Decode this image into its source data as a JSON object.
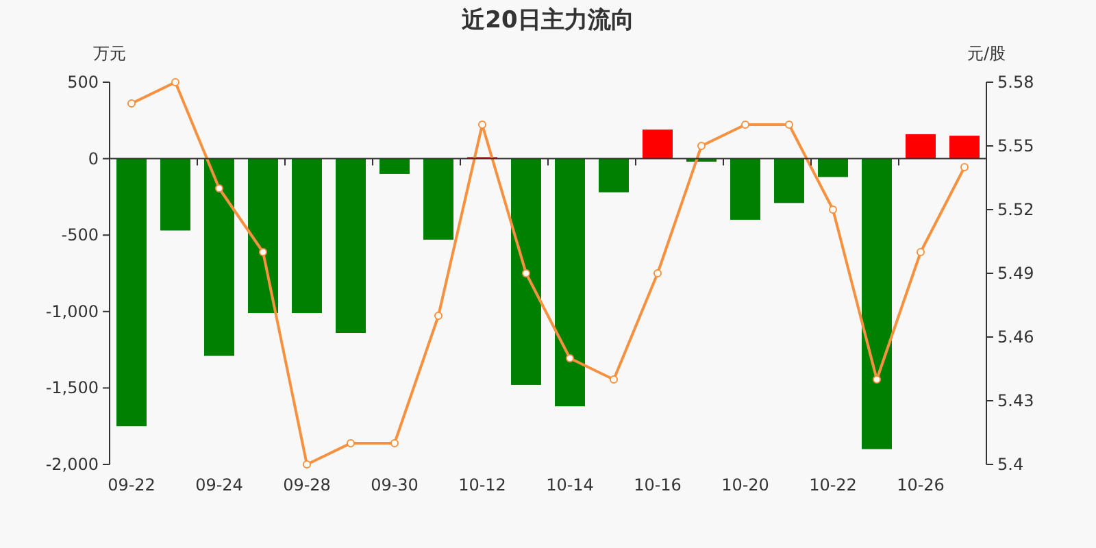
{
  "chart_data": {
    "type": "bar",
    "title": "近20日主力流向",
    "ylabel": "万元",
    "y2label": "元/股",
    "categories": [
      "09-22",
      null,
      "09-24",
      null,
      "09-28",
      null,
      "09-30",
      null,
      "10-12",
      null,
      "10-14",
      null,
      "10-16",
      null,
      "10-20",
      null,
      "10-22",
      null,
      "10-26",
      null
    ],
    "series": [
      {
        "values": [
          -1750,
          -470,
          -1290,
          -1010,
          -1010,
          -1140,
          -100,
          -530,
          10,
          -1480,
          -1620,
          -220,
          190,
          -20,
          -400,
          -290,
          -120,
          -1900,
          160,
          150
        ],
        "colors": [
          "#008000",
          "#008000",
          "#008000",
          "#008000",
          "#008000",
          "#008000",
          "#008000",
          "#008000",
          "#ff0000",
          "#008000",
          "#008000",
          "#008000",
          "#ff0000",
          "#008000",
          "#008000",
          "#008000",
          "#008000",
          "#008000",
          "#ff0000",
          "#ff0000"
        ]
      },
      {
        "type": "line",
        "axis": "y2",
        "color": "#f7913f",
        "marker": "circle",
        "values": [
          5.57,
          5.58,
          5.53,
          5.5,
          5.4,
          5.41,
          5.41,
          5.47,
          5.56,
          5.49,
          5.45,
          5.44,
          5.49,
          5.55,
          5.56,
          5.56,
          5.52,
          5.44,
          5.5,
          5.54
        ]
      }
    ],
    "ylim": [
      -2000,
      500
    ],
    "yticks": [
      {
        "value": -2000,
        "label": "-2,000"
      },
      {
        "value": -1500,
        "label": "-1,500"
      },
      {
        "value": -1000,
        "label": "-1,000"
      },
      -500,
      0,
      500
    ],
    "y2lim": [
      5.4,
      5.58
    ],
    "y2ticks": [
      5.4,
      5.43,
      5.46,
      5.49,
      5.52,
      5.55,
      5.58
    ]
  }
}
